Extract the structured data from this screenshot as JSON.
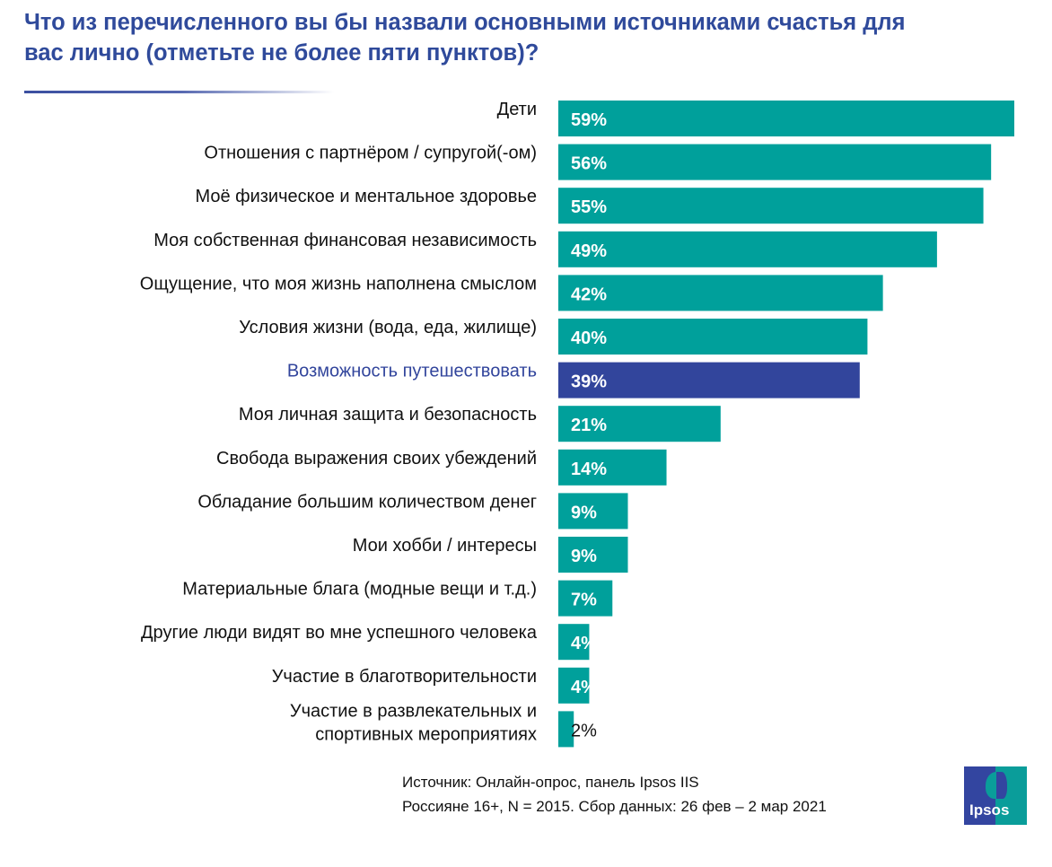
{
  "colors": {
    "bar": "#00a09b",
    "highlight": "#32459c",
    "title": "#2f4a9b"
  },
  "chart_data": {
    "type": "bar",
    "orientation": "horizontal",
    "title": "Что из перечисленного вы бы назвали основными источниками счастья для вас лично (отметьте не более пяти пунктов)?",
    "categories": [
      "Дети",
      "Отношения с партнёром / супругой(-ом)",
      "Моё физическое и ментальное здоровье",
      "Моя собственная финансовая независимость",
      "Ощущение, что моя жизнь наполнена смыслом",
      "Условия жизни (вода, еда, жилище)",
      "Возможность путешествовать",
      "Моя личная защита и безопасность",
      "Свобода выражения своих убеждений",
      "Обладание большим количеством денег",
      "Мои хобби / интересы",
      "Материальные блага (модные вещи и т.д.)",
      "Другие люди видят во мне успешного человека",
      "Участие в благотворительности",
      "Участие в развлекательных и спортивных мероприятиях"
    ],
    "values": [
      59,
      56,
      55,
      49,
      42,
      40,
      39,
      21,
      14,
      9,
      9,
      7,
      4,
      4,
      2
    ],
    "value_labels": [
      "59%",
      "56%",
      "55%",
      "49%",
      "42%",
      "40%",
      "39%",
      "21%",
      "14%",
      "9%",
      "9%",
      "7%",
      "4%",
      "4%",
      "2%"
    ],
    "highlighted_category": "Возможность путешествовать",
    "unit": "%",
    "grid": false,
    "legend": "none"
  },
  "source": {
    "line1": "Источник: Онлайн-опрос, панель Ipsos IIS",
    "line2": "Россияне 16+, N = 2015. Сбор данных: 26 фев – 2 мар 2021"
  },
  "logo": {
    "text": "Ipsos"
  }
}
